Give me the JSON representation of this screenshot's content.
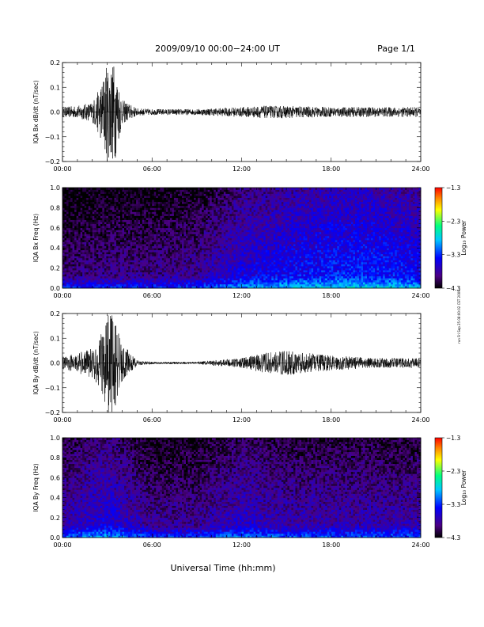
{
  "header": {
    "title": "2009/09/10  00:00−24:00 UT",
    "page": "Page 1/1"
  },
  "footer": {
    "xlabel": "Universal Time (hh:mm)",
    "stamp": "run Fri Sep 25 08:00:02 CST 2009"
  },
  "colorbar": {
    "label": "Log₁₀ Power",
    "ticks": [
      "−1.3",
      "−2.3",
      "−3.3",
      "−4.3"
    ],
    "colors": [
      "#000000",
      "#4b0082",
      "#0000ff",
      "#00c8ff",
      "#00ff80",
      "#ffff00",
      "#ff8000",
      "#ff0000"
    ]
  },
  "chart_data": [
    {
      "type": "line",
      "ylabel": "IQA Bx dB/dt (nT/sec)",
      "xlim": [
        0,
        24
      ],
      "ylim": [
        -0.2,
        0.2
      ],
      "x_ticks": [
        "00:00",
        "06:00",
        "12:00",
        "18:00",
        "24:00"
      ],
      "y_ticks": [
        "0.2",
        "0.1",
        "0.0",
        "−0.1",
        "−0.2"
      ],
      "x_hours": [
        0,
        1,
        2,
        2.5,
        3,
        3.2,
        3.5,
        4,
        5,
        6,
        9,
        12,
        13.5,
        15,
        18,
        21,
        24
      ],
      "amplitude": [
        0.02,
        0.025,
        0.04,
        0.1,
        0.2,
        0.2,
        0.2,
        0.05,
        0.015,
        0.012,
        0.012,
        0.02,
        0.025,
        0.025,
        0.02,
        0.02,
        0.02
      ],
      "color": "#000000"
    },
    {
      "type": "heatmap",
      "ylabel": "IQA Bx Freq (Hz)",
      "xlim": [
        0,
        24
      ],
      "ylim": [
        0,
        1.0
      ],
      "zlim": [
        -4.3,
        -1.3
      ],
      "x_ticks": [
        "00:00",
        "06:00",
        "12:00",
        "18:00",
        "24:00"
      ],
      "y_ticks": [
        "1.0",
        "0.8",
        "0.6",
        "0.4",
        "0.2",
        "0.0"
      ],
      "background_log_power": -3.9,
      "noise_x_hours": [
        0,
        3,
        6,
        9,
        12,
        15,
        18,
        21,
        24
      ],
      "noise_log_power": [
        -3.9,
        -3.85,
        -3.85,
        -3.8,
        -3.5,
        -3.4,
        -3.3,
        -3.3,
        -3.4
      ]
    },
    {
      "type": "line",
      "ylabel": "IQA By dB/dt (nT/sec)",
      "xlim": [
        0,
        24
      ],
      "ylim": [
        -0.2,
        0.2
      ],
      "x_ticks": [
        "00:00",
        "06:00",
        "12:00",
        "18:00",
        "24:00"
      ],
      "y_ticks": [
        "0.2",
        "0.1",
        "0.0",
        "−0.1",
        "−0.2"
      ],
      "x_hours": [
        0,
        1,
        2,
        2.5,
        3,
        3.2,
        3.5,
        4,
        5,
        6,
        9,
        12,
        13.5,
        15,
        18,
        21,
        24
      ],
      "amplitude": [
        0.025,
        0.04,
        0.06,
        0.1,
        0.2,
        0.2,
        0.2,
        0.08,
        0.01,
        0.005,
        0.005,
        0.02,
        0.04,
        0.05,
        0.03,
        0.02,
        0.02
      ],
      "color": "#000000"
    },
    {
      "type": "heatmap",
      "ylabel": "IQA By Freq (Hz)",
      "xlim": [
        0,
        24
      ],
      "ylim": [
        0,
        1.0
      ],
      "zlim": [
        -4.3,
        -1.3
      ],
      "x_ticks": [
        "00:00",
        "06:00",
        "12:00",
        "18:00",
        "24:00"
      ],
      "y_ticks": [
        "1.0",
        "0.8",
        "0.6",
        "0.4",
        "0.2",
        "0.0"
      ],
      "background_log_power": -4.0,
      "noise_x_hours": [
        0,
        3,
        6,
        9,
        12,
        15,
        18,
        21,
        24
      ],
      "noise_log_power": [
        -3.7,
        -3.5,
        -3.8,
        -3.8,
        -3.6,
        -3.7,
        -3.7,
        -3.7,
        -3.7
      ]
    }
  ]
}
